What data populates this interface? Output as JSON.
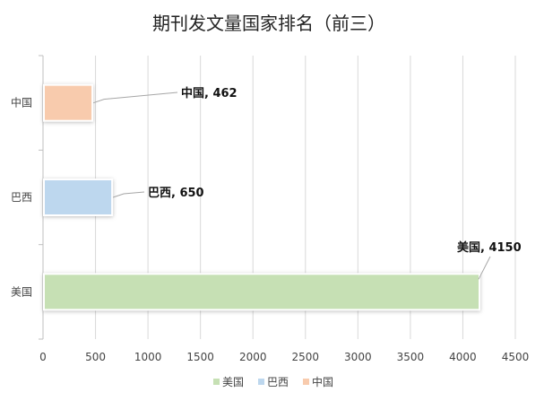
{
  "chart_data": {
    "type": "bar",
    "orientation": "horizontal",
    "title": "期刊发文量国家排名（前三）",
    "xlabel": "",
    "ylabel": "",
    "categories": [
      "美国",
      "巴西",
      "中国"
    ],
    "values": [
      4150,
      650,
      462
    ],
    "data_labels": [
      "美国, 4150",
      "巴西, 650",
      "中国, 462"
    ],
    "colors": [
      "#c6e0b4",
      "#bdd7ee",
      "#f8cbad"
    ],
    "xlim": [
      0,
      4500
    ],
    "xticks": [
      0,
      500,
      1000,
      1500,
      2000,
      2500,
      3000,
      3500,
      4000,
      4500
    ],
    "grid": true,
    "legend": {
      "position": "bottom",
      "entries": [
        "美国",
        "巴西",
        "中国"
      ]
    }
  }
}
